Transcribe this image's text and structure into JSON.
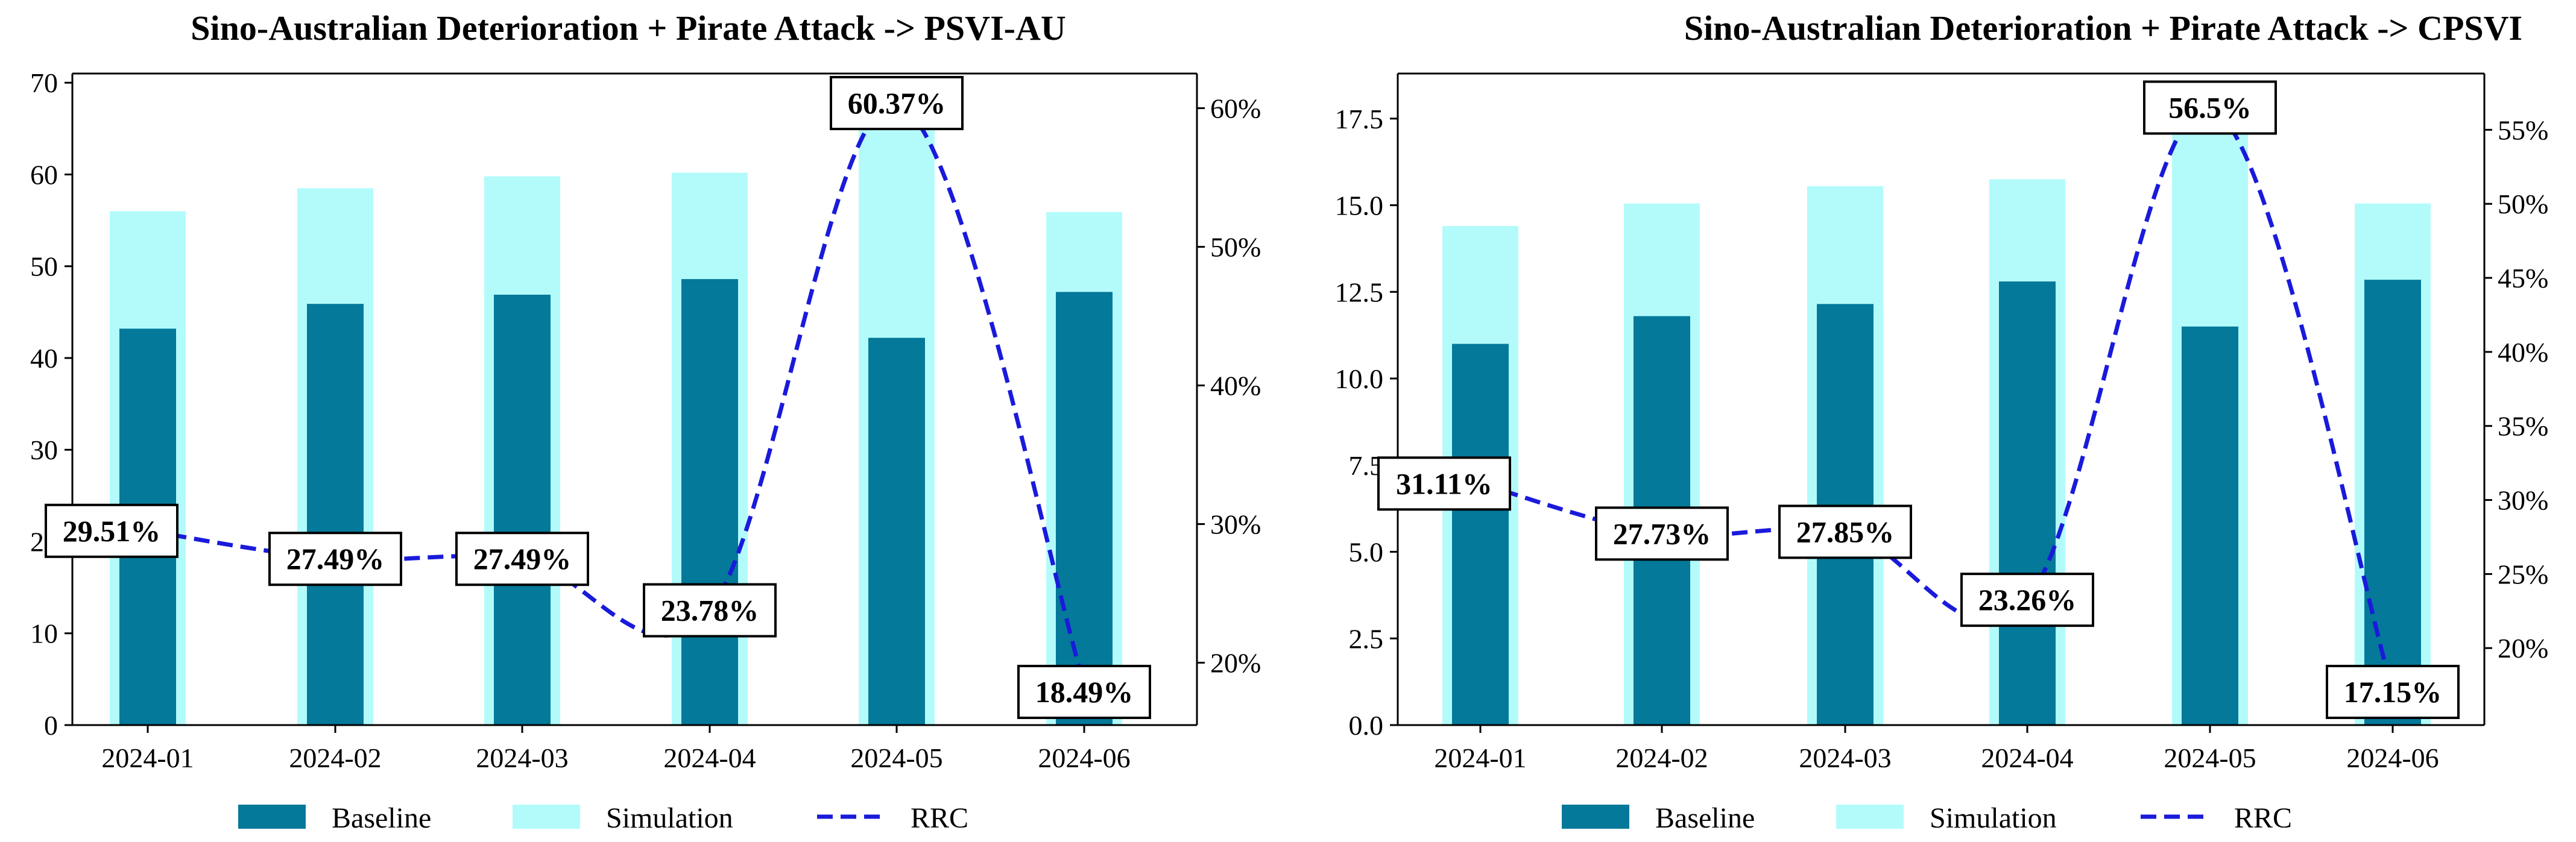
{
  "chart_data": [
    {
      "type": "bar",
      "title": "Sino-Australian Deterioration + Pirate Attack -> PSVI-AU",
      "categories": [
        "2024-01",
        "2024-02",
        "2024-03",
        "2024-04",
        "2024-05",
        "2024-06"
      ],
      "series": [
        {
          "name": "Baseline",
          "kind": "bar",
          "axis": "left",
          "values": [
            43.2,
            45.9,
            46.9,
            48.6,
            42.2,
            47.2
          ]
        },
        {
          "name": "Simulation",
          "kind": "bar",
          "axis": "left",
          "values": [
            56.0,
            58.5,
            59.8,
            60.2,
            67.7,
            55.9
          ]
        },
        {
          "name": "RRC",
          "kind": "line",
          "axis": "right",
          "values": [
            29.51,
            27.49,
            27.49,
            23.78,
            60.37,
            18.49
          ]
        }
      ],
      "data_labels": [
        "29.51%",
        "27.49%",
        "27.49%",
        "23.78%",
        "60.37%",
        "18.49%"
      ],
      "ylim": [
        0,
        71
      ],
      "yticks": [
        0,
        10,
        20,
        30,
        40,
        50,
        60,
        70
      ],
      "ytick_labels": [
        "0",
        "10",
        "20",
        "30",
        "40",
        "50",
        "60",
        "70"
      ],
      "y2lim": [
        15.5,
        62.5
      ],
      "y2ticks": [
        20,
        30,
        40,
        50,
        60
      ],
      "y2tick_labels": [
        "20%",
        "30%",
        "40%",
        "50%",
        "60%"
      ],
      "legend": [
        "Baseline",
        "Simulation",
        "RRC"
      ],
      "legend_position": "bottom-center",
      "grid": false
    },
    {
      "type": "bar",
      "title": "Sino-Australian Deterioration + Pirate Attack -> CPSVI",
      "categories": [
        "2024-01",
        "2024-02",
        "2024-03",
        "2024-04",
        "2024-05",
        "2024-06"
      ],
      "series": [
        {
          "name": "Baseline",
          "kind": "bar",
          "axis": "left",
          "values": [
            11.0,
            11.8,
            12.15,
            12.8,
            11.5,
            12.85
          ]
        },
        {
          "name": "Simulation",
          "kind": "bar",
          "axis": "left",
          "values": [
            14.4,
            15.05,
            15.55,
            15.75,
            18.0,
            15.05
          ]
        },
        {
          "name": "RRC",
          "kind": "line",
          "axis": "right",
          "values": [
            31.11,
            27.73,
            27.85,
            23.26,
            56.5,
            17.15
          ]
        }
      ],
      "data_labels": [
        "31.11%",
        "27.73%",
        "27.85%",
        "23.26%",
        "56.5%",
        "17.15%"
      ],
      "ylim": [
        0,
        18.8
      ],
      "yticks": [
        0,
        2.5,
        5,
        7.5,
        10,
        12.5,
        15,
        17.5
      ],
      "ytick_labels": [
        "0.0",
        "2.5",
        "5.0",
        "7.5",
        "10.0",
        "12.5",
        "15.0",
        "17.5"
      ],
      "y2lim": [
        14.8,
        58.8
      ],
      "y2ticks": [
        20,
        25,
        30,
        35,
        40,
        45,
        50,
        55
      ],
      "y2tick_labels": [
        "20%",
        "25%",
        "30%",
        "35%",
        "40%",
        "45%",
        "50%",
        "55%"
      ],
      "legend": [
        "Baseline",
        "Simulation",
        "RRC"
      ],
      "legend_position": "bottom-center",
      "grid": false
    }
  ],
  "colors": {
    "baseline": "#04799a",
    "simulation": "#b3fbfb",
    "rrc": "#1a1adb",
    "axis": "#000000"
  }
}
